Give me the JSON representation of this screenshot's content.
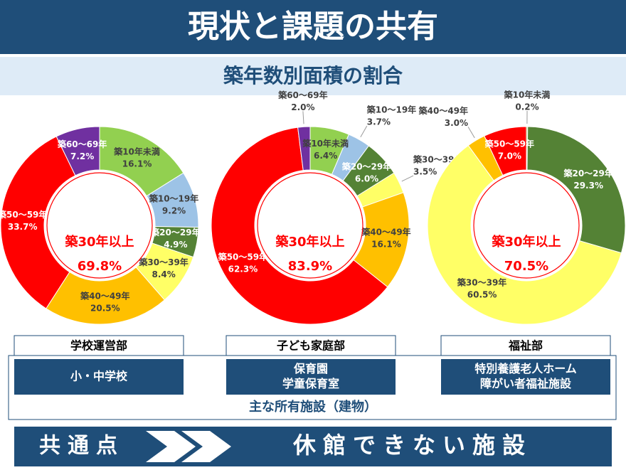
{
  "header": {
    "title": "現状と課題の共有",
    "subtitle": "築年数別面積の割合"
  },
  "chart_data": [
    {
      "type": "pie",
      "donut": true,
      "categories": [
        "築10年未満",
        "築10～19年",
        "築20～29年",
        "築30～39年",
        "築40～49年",
        "築50～59年",
        "築60～69年"
      ],
      "values": [
        16.1,
        9.2,
        4.9,
        8.4,
        20.5,
        33.7,
        7.2
      ],
      "value_labels": [
        "16.1%",
        "9.2%",
        "4.9%",
        "8.4%",
        "20.5%",
        "33.7%",
        "7.2%"
      ],
      "colors": [
        "#92d050",
        "#9dc3e6",
        "#548235",
        "#ffff66",
        "#ffc000",
        "#ff0000",
        "#7030a0"
      ],
      "center_title": "築30年以上",
      "center_text": "69.8%"
    },
    {
      "type": "pie",
      "donut": true,
      "categories": [
        "築10年未満",
        "築10～19年",
        "築20～29年",
        "築30～39年",
        "築40～49年",
        "築50～59年",
        "築60～69年"
      ],
      "values": [
        6.4,
        3.7,
        6.0,
        3.5,
        16.1,
        62.3,
        2.0
      ],
      "value_labels": [
        "6.4%",
        "3.7%",
        "6.0%",
        "3.5%",
        "16.1%",
        "62.3%",
        "2.0%"
      ],
      "colors": [
        "#92d050",
        "#9dc3e6",
        "#548235",
        "#ffff66",
        "#ffc000",
        "#ff0000",
        "#7030a0"
      ],
      "center_title": "築30年以上",
      "center_text": "83.9%"
    },
    {
      "type": "pie",
      "donut": true,
      "categories": [
        "築10年未満",
        "築20～29年",
        "築30～39年",
        "築40～49年",
        "築50～59年"
      ],
      "values": [
        0.2,
        29.3,
        60.5,
        3.0,
        7.0
      ],
      "value_labels": [
        "0.2%",
        "29.3%",
        "60.5%",
        "3.0%",
        "7.0%"
      ],
      "colors": [
        "#92d050",
        "#548235",
        "#ffff66",
        "#ffc000",
        "#ff0000"
      ],
      "center_title": "築30年以上",
      "center_text": "70.5%"
    }
  ],
  "departments": [
    {
      "name": "学校運営部",
      "facilities": [
        "小・中学校"
      ]
    },
    {
      "name": "子ども家庭部",
      "facilities": [
        "保育園",
        "学童保育室"
      ]
    },
    {
      "name": "福祉部",
      "facilities": [
        "特別養護老人ホーム",
        "障がい者福祉施設"
      ]
    }
  ],
  "facilities_caption": "主な所有施設（建物）",
  "footer": {
    "label": "共通点",
    "text": "休館できない施設"
  }
}
